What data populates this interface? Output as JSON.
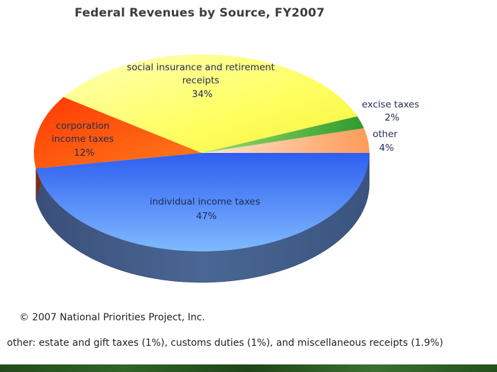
{
  "chart_data": {
    "type": "pie",
    "title": "Federal Revenues by Source, FY2007",
    "slices": [
      {
        "label": "individual income taxes",
        "value": 47,
        "display": "47%",
        "color": "#3d6ef2"
      },
      {
        "label": "corporation income taxes",
        "value": 12,
        "display": "12%",
        "color": "#ff4a0a"
      },
      {
        "label": "social insurance and retirement receipts",
        "value": 34,
        "display": "34%",
        "color": "#ffff55"
      },
      {
        "label": "excise taxes",
        "value": 2,
        "display": "2%",
        "color": "#44b33c"
      },
      {
        "label": "other",
        "value": 4,
        "display": "4%",
        "color": "#ffc49a"
      }
    ]
  },
  "labels": {
    "individual": [
      "individual income taxes",
      "47%"
    ],
    "corporation": [
      "corporation",
      "income taxes",
      "12%"
    ],
    "social": [
      "social insurance and retirement",
      "receipts",
      "34%"
    ],
    "excise": [
      "excise taxes",
      "2%"
    ],
    "other": [
      "other",
      "4%"
    ]
  },
  "footer": {
    "copyright": "© 2007 National Priorities Project, Inc.",
    "note": "other: estate and gift taxes (1%), customs duties (1%), and miscellaneous receipts (1.9%)"
  }
}
